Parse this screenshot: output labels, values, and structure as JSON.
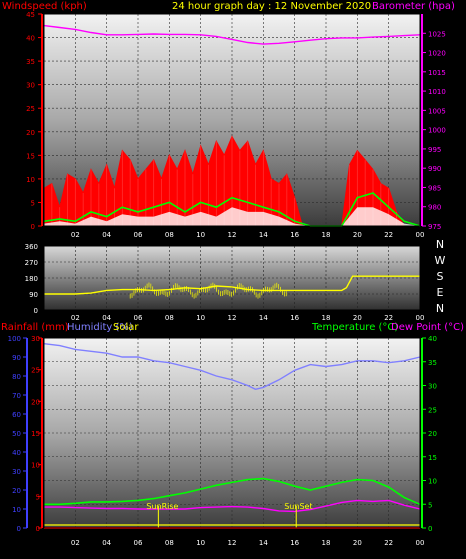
{
  "colors": {
    "wind": "#ff0000",
    "baro": "#ff00ff",
    "title": "#ffff00",
    "gust_fill": "#ff0000",
    "avg": "#00ff00",
    "low_fill": "#ffffff",
    "winddir": "#ffff00",
    "rain": "#ff0000",
    "humidity": "#8080ff",
    "temp": "#00ff00",
    "dew": "#ff00ff",
    "solar": "#ffff00",
    "axis_left": "#ff0000",
    "axis_hum": "#4040ff",
    "axis_right_temp": "#00ff00",
    "axis_right_baro": "#ff00ff",
    "compass": "#ffffff"
  },
  "header": {
    "wind_label": "Windspeed (kph)",
    "title": "24 hour graph day : 12 November 2020",
    "baro_label": "Barometer (hpa)"
  },
  "mid": {
    "label_rain": "Rainfall (mm)",
    "label_humidity": "Humidity (%)",
    "label_solar": "Solar",
    "label_temp": "Temperature (°C)",
    "label_dew": "Dew Point (°C)"
  },
  "annotations": {
    "sunrise": "SunRise",
    "sunset": "SunSet"
  },
  "chart_data": [
    {
      "type": "line",
      "title": "24 hour graph day : 12 November 2020",
      "x_ticks": [
        "02",
        "04",
        "06",
        "08",
        "10",
        "12",
        "14",
        "16",
        "18",
        "20",
        "22",
        "00"
      ],
      "y_left_label": "Windspeed (kph)",
      "y_left_ticks": [
        0,
        5,
        10,
        15,
        20,
        25,
        30,
        35,
        40,
        45
      ],
      "y_left_range": [
        0,
        45
      ],
      "y_right_label": "Barometer (hpa)",
      "y_right_ticks": [
        975,
        980,
        985,
        990,
        995,
        1000,
        1005,
        1010,
        1015,
        1020,
        1025
      ],
      "y_right_range": [
        975,
        1030
      ],
      "series": [
        {
          "name": "Barometer (hpa)",
          "axis": "right",
          "x": [
            0,
            1,
            2,
            3,
            4,
            5,
            6,
            7,
            8,
            9,
            10,
            11,
            12,
            13,
            14,
            15,
            16,
            17,
            18,
            19,
            20,
            21,
            22,
            23,
            24
          ],
          "y": [
            1027,
            1026.5,
            1026,
            1025.2,
            1024.6,
            1024.6,
            1024.7,
            1024.8,
            1024.7,
            1024.7,
            1024.6,
            1024.2,
            1023.4,
            1022.6,
            1022.2,
            1022.4,
            1022.8,
            1023.2,
            1023.6,
            1023.8,
            1023.8,
            1024,
            1024.2,
            1024.4,
            1024.6
          ]
        },
        {
          "name": "Wind gust",
          "axis": "left",
          "x": [
            0,
            0.5,
            1,
            1.5,
            2,
            2.5,
            3,
            3.5,
            4,
            4.5,
            5,
            5.5,
            6,
            6.5,
            7,
            7.5,
            8,
            8.5,
            9,
            9.5,
            10,
            10.5,
            11,
            11.5,
            12,
            12.5,
            13,
            13.5,
            14,
            14.5,
            15,
            15.5,
            16,
            16.5,
            17,
            17.5,
            18,
            18.5,
            19,
            19.5,
            20,
            20.5,
            21,
            21.5,
            22,
            22.5,
            23,
            23.5,
            24
          ],
          "y": [
            8,
            9,
            4,
            11,
            10,
            7,
            12,
            9,
            13,
            8,
            16,
            14,
            10,
            12,
            14,
            10,
            15,
            12,
            16,
            11,
            17,
            13,
            18,
            15,
            19,
            16,
            18,
            13,
            16,
            10,
            9,
            11,
            6,
            0,
            0,
            0,
            0,
            0,
            0,
            13,
            16,
            14,
            12,
            9,
            8,
            3,
            0,
            0,
            0
          ]
        },
        {
          "name": "Wind average",
          "axis": "left",
          "x": [
            0,
            1,
            2,
            3,
            4,
            5,
            6,
            7,
            8,
            9,
            10,
            11,
            12,
            13,
            14,
            15,
            16,
            17,
            18,
            19,
            20,
            21,
            22,
            23,
            24
          ],
          "y": [
            1,
            1.5,
            1,
            3,
            2,
            4,
            3,
            4,
            5,
            3,
            5,
            4,
            6,
            5,
            4,
            3,
            1,
            0,
            0,
            0,
            6,
            7,
            4,
            1,
            0
          ]
        },
        {
          "name": "Wind low",
          "axis": "left",
          "x": [
            0,
            1,
            2,
            3,
            4,
            5,
            6,
            7,
            8,
            9,
            10,
            11,
            12,
            13,
            14,
            15,
            16,
            17,
            18,
            19,
            20,
            21,
            22,
            23,
            24
          ],
          "y": [
            0.5,
            1,
            0.5,
            2,
            1,
            2.5,
            2,
            2,
            3,
            2,
            3,
            2,
            4,
            3,
            3,
            2,
            0.5,
            0,
            0,
            0,
            4,
            4,
            2.5,
            0.5,
            0
          ]
        }
      ]
    },
    {
      "type": "line",
      "x_ticks": [
        "02",
        "04",
        "06",
        "08",
        "10",
        "12",
        "14",
        "16",
        "18",
        "20",
        "22",
        "00"
      ],
      "y_left_ticks": [
        0,
        90,
        180,
        270,
        360
      ],
      "y_left_range": [
        0,
        360
      ],
      "y_right_ticks": [
        "N",
        "W",
        "S",
        "E",
        "N"
      ],
      "series": [
        {
          "name": "Wind direction",
          "x": [
            0,
            1,
            2,
            3,
            4,
            5,
            6,
            7,
            8,
            9,
            10,
            11,
            12,
            13,
            14,
            15,
            16,
            17,
            18,
            19,
            19.3,
            19.7,
            20,
            21,
            22,
            23,
            24
          ],
          "y": [
            90,
            90,
            90,
            95,
            110,
            115,
            115,
            110,
            115,
            125,
            120,
            135,
            130,
            115,
            110,
            110,
            110,
            110,
            110,
            110,
            125,
            190,
            190,
            190,
            190,
            190,
            190
          ]
        }
      ]
    },
    {
      "type": "line",
      "x_ticks": [
        "02",
        "04",
        "06",
        "08",
        "10",
        "12",
        "14",
        "16",
        "18",
        "20",
        "22",
        "00"
      ],
      "y_left_ticks": [
        0,
        5,
        10,
        15,
        20,
        25,
        30
      ],
      "y_left_range": [
        0,
        30
      ],
      "y_hum_ticks": [
        0,
        10,
        20,
        30,
        40,
        50,
        60,
        70,
        80,
        90,
        100
      ],
      "y_hum_range": [
        0,
        100
      ],
      "y_right_ticks": [
        0,
        5,
        10,
        15,
        20,
        25,
        30,
        35,
        40
      ],
      "y_right_range": [
        0,
        40
      ],
      "series": [
        {
          "name": "Humidity (%)",
          "axis": "humidity",
          "x": [
            0,
            1,
            2,
            3,
            4,
            5,
            6,
            7,
            8,
            9,
            10,
            11,
            12,
            13,
            13.5,
            14,
            15,
            16,
            17,
            18,
            19,
            20,
            21,
            22,
            23,
            24
          ],
          "y": [
            97,
            96,
            94,
            93,
            92,
            90,
            90,
            88,
            87,
            85,
            83,
            80,
            78,
            75,
            73,
            74,
            78,
            83,
            86,
            85,
            86,
            88,
            88,
            87,
            88,
            90
          ]
        },
        {
          "name": "Temperature (°C)",
          "axis": "right",
          "x": [
            0,
            1,
            2,
            3,
            4,
            5,
            6,
            7,
            8,
            9,
            10,
            11,
            12,
            13,
            14,
            15,
            16,
            17,
            18,
            19,
            20,
            21,
            22,
            23,
            24
          ],
          "y": [
            5,
            5,
            5.2,
            5.5,
            5.5,
            5.6,
            5.8,
            6.2,
            6.8,
            7.4,
            8.2,
            9,
            9.6,
            10.2,
            10.4,
            9.8,
            8.8,
            8,
            8.8,
            9.6,
            10.2,
            10,
            8.6,
            6.4,
            5
          ]
        },
        {
          "name": "Dew Point (°C)",
          "axis": "right",
          "x": [
            0,
            1,
            2,
            3,
            4,
            5,
            6,
            7,
            8,
            9,
            10,
            11,
            12,
            13,
            14,
            15,
            16,
            17,
            18,
            19,
            20,
            21,
            22,
            23,
            24
          ],
          "y": [
            4.4,
            4.4,
            4.3,
            4.2,
            4.1,
            4.1,
            4,
            4,
            4,
            4,
            4.3,
            4.4,
            4.5,
            4.4,
            4.1,
            3.6,
            3.5,
            3.9,
            4.6,
            5.4,
            5.8,
            5.6,
            5.8,
            4.8,
            4
          ]
        },
        {
          "name": "Rainfall (mm)",
          "axis": "left",
          "x": [
            0,
            24
          ],
          "y": [
            0,
            0
          ]
        }
      ],
      "markers": [
        {
          "name": "SunRise",
          "x": 7.3
        },
        {
          "name": "SunSet",
          "x": 16.1
        }
      ]
    }
  ]
}
